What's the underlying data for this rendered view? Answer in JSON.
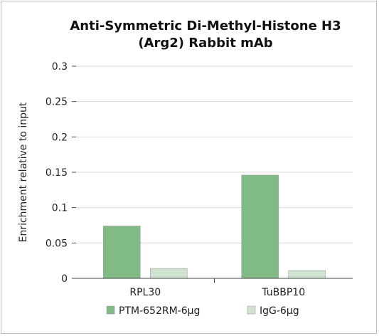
{
  "chart_data": {
    "type": "bar",
    "title_lines": [
      "Anti-Symmetric Di-Methyl-Histone H3",
      "(Arg2) Rabbit mAb"
    ],
    "ylabel": "Enrichment relative to input",
    "xlabel": "",
    "categories": [
      "RPL30",
      "TuBBP10"
    ],
    "series": [
      {
        "name": "PTM-652RM-6μg",
        "values": [
          0.074,
          0.146
        ],
        "color": "#80bb85"
      },
      {
        "name": "IgG-6μg",
        "values": [
          0.014,
          0.011
        ],
        "color": "#cfe3d0"
      }
    ],
    "ylim": [
      0,
      0.3
    ],
    "yticks": [
      "0",
      "0.05",
      "0.1",
      "0.15",
      "0.2",
      "0.25",
      "0.3"
    ],
    "grid": true,
    "legend_position": "bottom"
  }
}
